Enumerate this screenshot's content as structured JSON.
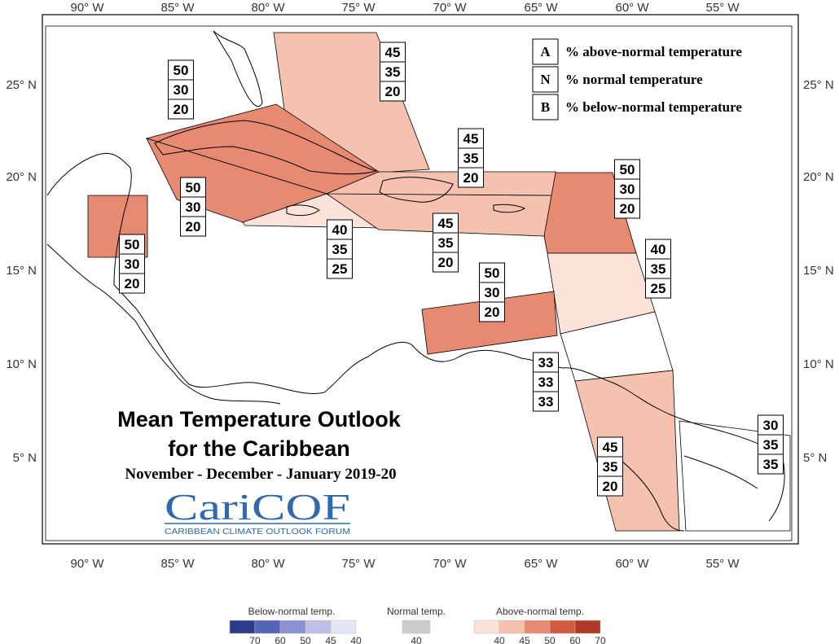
{
  "axes": {
    "lon_ticks": [
      "90° W",
      "85° W",
      "80° W",
      "75° W",
      "70° W",
      "65° W",
      "60° W",
      "55° W"
    ],
    "lat_ticks": [
      "25° N",
      "20° N",
      "15° N",
      "10° N",
      "5° N"
    ]
  },
  "legend": [
    {
      "letter": "A",
      "text": "% above-normal temperature"
    },
    {
      "letter": "N",
      "text": "% normal temperature"
    },
    {
      "letter": "B",
      "text": "% below-normal temperature"
    }
  ],
  "title": {
    "line1": "Mean Temperature Outlook",
    "line2": "for the Caribbean",
    "line3": "November - December - January 2019-20"
  },
  "logo": {
    "main": "CariCOF",
    "sub": "CARIBBEAN CLIMATE OUTLOOK FORUM"
  },
  "regions": [
    {
      "id": "bahamas",
      "A": "45",
      "N": "35",
      "B": "20",
      "fill": "#f6c2b0"
    },
    {
      "id": "cuba",
      "A": "50",
      "N": "30",
      "B": "20",
      "fill": "#e78a72"
    },
    {
      "id": "cayman",
      "A": "50",
      "N": "30",
      "B": "20",
      "fill": "#e78a72"
    },
    {
      "id": "belize",
      "A": "50",
      "N": "30",
      "B": "20",
      "fill": "#e78a72"
    },
    {
      "id": "jamaica",
      "A": "40",
      "N": "35",
      "B": "25",
      "fill": "#fbe3d9"
    },
    {
      "id": "hispaniola",
      "A": "45",
      "N": "35",
      "B": "20",
      "fill": "#f6c2b0"
    },
    {
      "id": "turks-caicos",
      "A": "45",
      "N": "35",
      "B": "20",
      "fill": "#f6c2b0"
    },
    {
      "id": "leeward",
      "A": "50",
      "N": "30",
      "B": "20",
      "fill": "#e78a72"
    },
    {
      "id": "windward",
      "A": "40",
      "N": "35",
      "B": "25",
      "fill": "#fbe3d9"
    },
    {
      "id": "abc",
      "A": "50",
      "N": "30",
      "B": "20",
      "fill": "#e78a72"
    },
    {
      "id": "trinidad",
      "A": "33",
      "N": "33",
      "B": "33",
      "fill": "#ffffff"
    },
    {
      "id": "guyana",
      "A": "45",
      "N": "35",
      "B": "20",
      "fill": "#f6c2b0"
    },
    {
      "id": "suriname",
      "A": "30",
      "N": "35",
      "B": "35",
      "fill": "#ffffff"
    }
  ],
  "colorbar": {
    "below": {
      "title": "Below-normal temp.",
      "colors": [
        "#2e3a8c",
        "#5564b8",
        "#8a92cf",
        "#bcc0e6",
        "#e4e6f6"
      ],
      "ticks": [
        "70",
        "60",
        "50",
        "45",
        "40"
      ]
    },
    "normal": {
      "title": "Normal temp.",
      "colors": [
        "#cccccc"
      ],
      "ticks": [
        "40"
      ]
    },
    "above": {
      "title": "Above-normal temp.",
      "colors": [
        "#fbe3d9",
        "#f6c2b0",
        "#e78a72",
        "#d45a45",
        "#b03a25"
      ],
      "ticks": [
        "40",
        "45",
        "50",
        "60",
        "70"
      ]
    }
  }
}
